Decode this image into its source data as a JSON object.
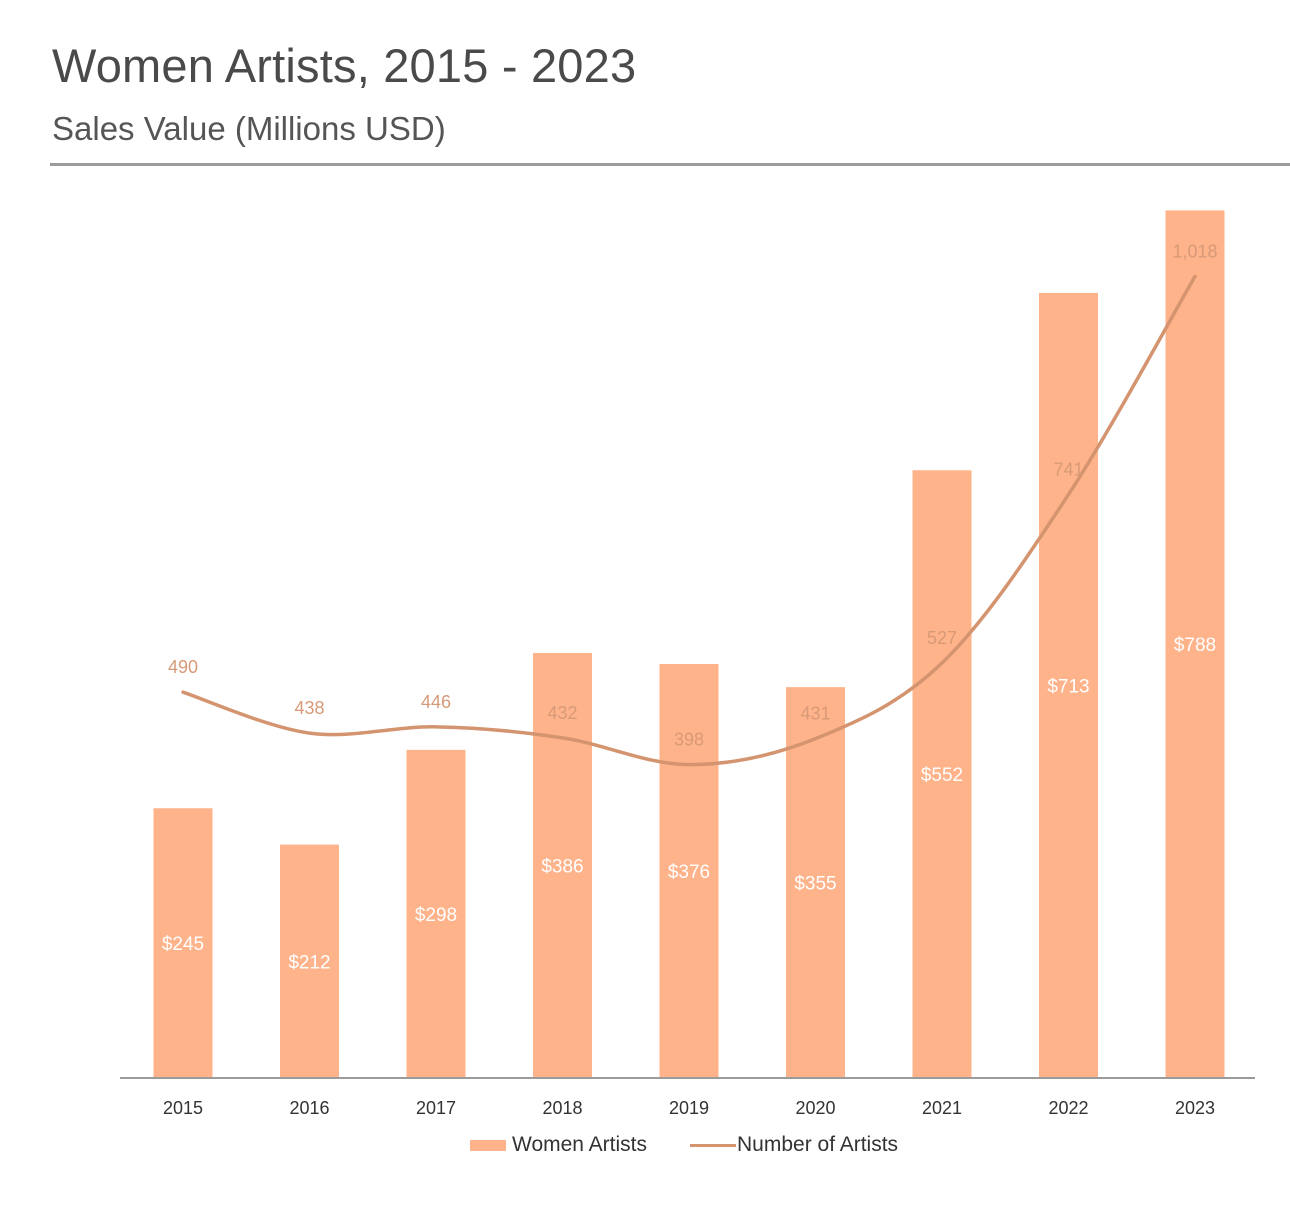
{
  "header": {
    "title": "Women Artists, 2015 - 2023",
    "subtitle": "Sales Value (Millions USD)"
  },
  "colors": {
    "bar": "#FFB38A",
    "line": "#D4946F",
    "bar_label": "#ffffff",
    "line_label": "#D79A78",
    "axis": "#9b9b9b"
  },
  "legend": {
    "bar_label": "Women Artists",
    "line_label": "Number of Artists"
  },
  "chart_data": {
    "type": "bar",
    "title": "Women Artists, 2015 - 2023",
    "subtitle": "Sales Value (Millions USD)",
    "categories": [
      "2015",
      "2016",
      "2017",
      "2018",
      "2019",
      "2020",
      "2021",
      "2022",
      "2023"
    ],
    "series": [
      {
        "name": "Women Artists",
        "type": "bar",
        "values": [
          245,
          212,
          298,
          386,
          376,
          355,
          552,
          713,
          788
        ],
        "labels": [
          "$245",
          "$212",
          "$298",
          "$386",
          "$376",
          "$355",
          "$552",
          "$713",
          "$788"
        ]
      },
      {
        "name": "Number of Artists",
        "type": "line",
        "values": [
          490,
          438,
          446,
          432,
          398,
          431,
          527,
          741,
          1018
        ],
        "labels": [
          "490",
          "438",
          "446",
          "432",
          "398",
          "431",
          "527",
          "741",
          "1,018"
        ]
      }
    ],
    "ylim": [
      0,
      792
    ],
    "line_ylim": [
      0,
      1350
    ],
    "grid": false,
    "legend_position": "bottom-center"
  }
}
